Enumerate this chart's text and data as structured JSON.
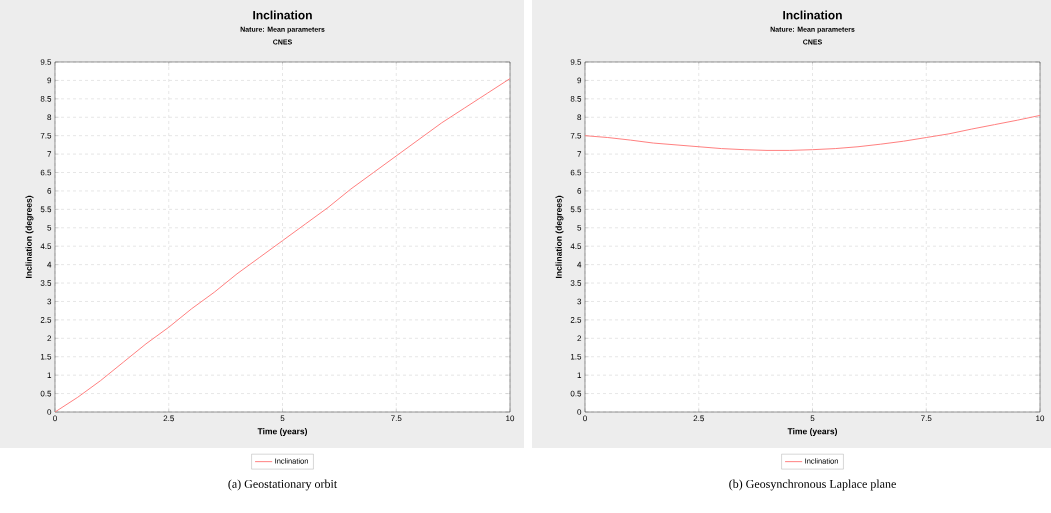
{
  "chart_data": [
    {
      "type": "line",
      "title": "Inclination",
      "subtitle": "Nature: Mean parameters",
      "annotations": [
        "CNES",
        "(a) Geostationary orbit"
      ],
      "xlabel": "Time (years)",
      "ylabel": "Inclination (degrees)",
      "x": [
        0,
        0.5,
        1,
        1.5,
        2,
        2.5,
        3,
        3.5,
        4,
        4.5,
        5,
        5.5,
        6,
        6.5,
        7,
        7.5,
        8,
        8.5,
        9,
        9.5,
        10
      ],
      "series": [
        {
          "name": "Inclination",
          "color": "#ff8080",
          "values": [
            0,
            0.4,
            0.85,
            1.35,
            1.85,
            2.3,
            2.8,
            3.25,
            3.75,
            4.2,
            4.65,
            5.1,
            5.55,
            6.05,
            6.5,
            6.95,
            7.4,
            7.85,
            8.25,
            8.65,
            9.05
          ]
        }
      ],
      "xlim": [
        0,
        10
      ],
      "ylim": [
        0,
        9.5
      ],
      "xticks": [
        0,
        2.5,
        5,
        7.5,
        10
      ],
      "yticks": [
        0,
        0.5,
        1,
        1.5,
        2,
        2.5,
        3,
        3.5,
        4,
        4.5,
        5,
        5.5,
        6,
        6.5,
        7,
        7.5,
        8,
        8.5,
        9,
        9.5
      ],
      "grid": true,
      "legend": "bottom"
    },
    {
      "type": "line",
      "title": "Inclination",
      "subtitle": "Nature: Mean parameters",
      "annotations": [
        "CNES",
        "(b) Geosynchronous Laplace plane"
      ],
      "xlabel": "Time (years)",
      "ylabel": "Inclination (degrees)",
      "x": [
        0,
        0.5,
        1,
        1.5,
        2,
        2.5,
        3,
        3.5,
        4,
        4.5,
        5,
        5.5,
        6,
        6.5,
        7,
        7.5,
        8,
        8.5,
        9,
        9.5,
        10
      ],
      "series": [
        {
          "name": "Inclination",
          "color": "#ff8080",
          "values": [
            7.5,
            7.45,
            7.38,
            7.3,
            7.25,
            7.2,
            7.15,
            7.12,
            7.1,
            7.1,
            7.12,
            7.15,
            7.2,
            7.27,
            7.35,
            7.45,
            7.55,
            7.68,
            7.8,
            7.92,
            8.05
          ]
        }
      ],
      "xlim": [
        0,
        10
      ],
      "ylim": [
        0,
        9.5
      ],
      "xticks": [
        0,
        2.5,
        5,
        7.5,
        10
      ],
      "yticks": [
        0,
        0.5,
        1,
        1.5,
        2,
        2.5,
        3,
        3.5,
        4,
        4.5,
        5,
        5.5,
        6,
        6.5,
        7,
        7.5,
        8,
        8.5,
        9,
        9.5
      ],
      "grid": true,
      "legend": "bottom"
    }
  ]
}
